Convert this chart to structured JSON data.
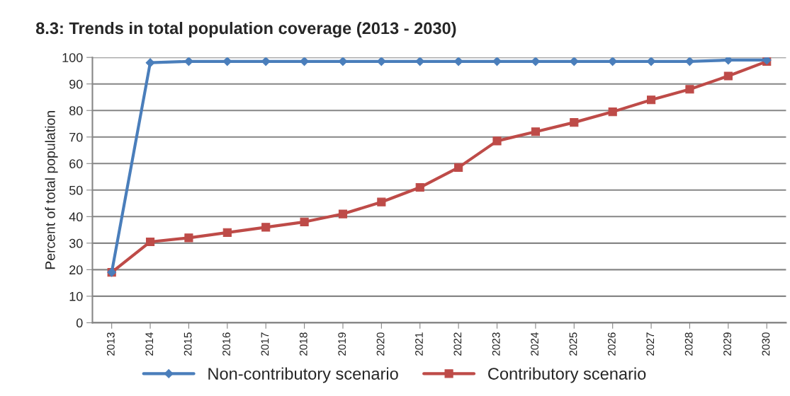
{
  "chart_data": {
    "type": "line",
    "title": "8.3: Trends in total population coverage (2013 - 2030)",
    "ylabel": "Percent of total population",
    "categories": [
      "2013",
      "2014",
      "2015",
      "2016",
      "2017",
      "2018",
      "2019",
      "2020",
      "2021",
      "2022",
      "2023",
      "2024",
      "2025",
      "2026",
      "2027",
      "2028",
      "2029",
      "2030"
    ],
    "series": [
      {
        "name": "Non-contributory scenario",
        "color": "#4a7ebb",
        "marker": "diamond",
        "values": [
          19,
          98,
          98.5,
          98.5,
          98.5,
          98.5,
          98.5,
          98.5,
          98.5,
          98.5,
          98.5,
          98.5,
          98.5,
          98.5,
          98.5,
          98.5,
          99,
          99
        ]
      },
      {
        "name": "Contributory scenario",
        "color": "#be4b48",
        "marker": "square",
        "values": [
          19,
          30.5,
          32,
          34,
          36,
          38,
          41,
          45.5,
          51,
          58.5,
          68.5,
          72,
          75.5,
          79.5,
          84,
          88,
          93,
          98.5
        ]
      }
    ],
    "ylim": [
      0,
      100
    ],
    "yticks": [
      0,
      10,
      20,
      30,
      40,
      50,
      60,
      70,
      80,
      90,
      100
    ],
    "grid": "y",
    "legend": "bottom",
    "line_style": "solid"
  }
}
